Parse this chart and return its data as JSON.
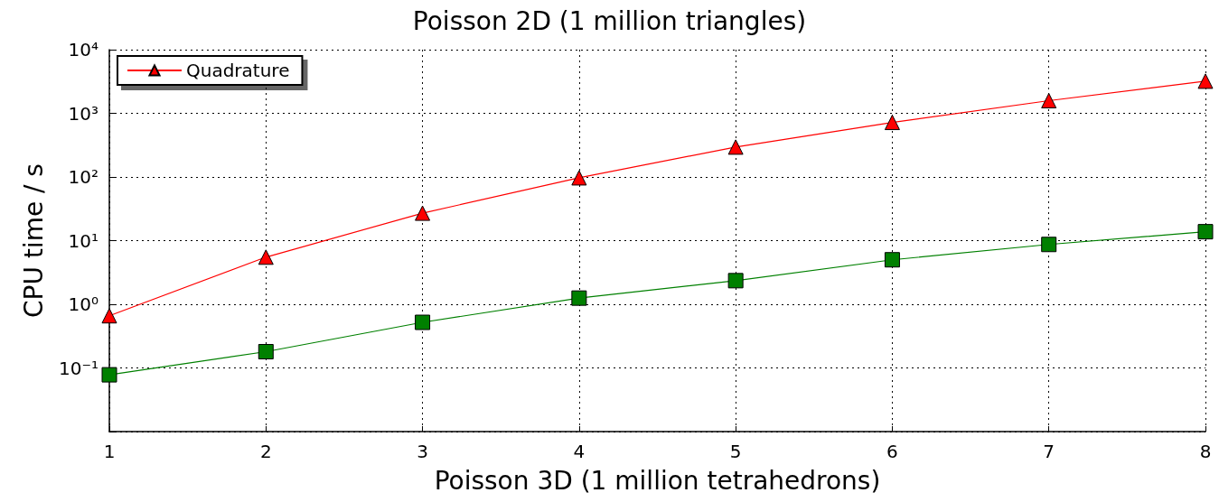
{
  "chart_data": {
    "type": "line",
    "title": "Poisson 2D (1 million triangles)",
    "xlabel": "Poisson 3D (1 million tetrahedrons)",
    "ylabel": "CPU time / s",
    "x": [
      1,
      2,
      3,
      4,
      5,
      6,
      7,
      8
    ],
    "series": [
      {
        "name": "Quadrature",
        "color": "#ff0000",
        "marker": "triangle",
        "values": [
          0.66,
          5.5,
          27,
          97,
          295,
          720,
          1580,
          3200
        ]
      },
      {
        "color": "#008000",
        "marker": "square",
        "values": [
          0.078,
          0.18,
          0.52,
          1.25,
          2.35,
          5,
          8.7,
          13.8
        ]
      }
    ],
    "log": "y",
    "xlim": [
      1,
      8
    ],
    "xticks": [
      1,
      2,
      3,
      4,
      5,
      6,
      7,
      8
    ],
    "ylim": [
      0.01,
      10000
    ],
    "yticks": [
      {
        "value": 0.01,
        "label": null
      },
      {
        "value": 0.1,
        "label": "10⁻¹"
      },
      {
        "value": 1,
        "label": "10⁰"
      },
      {
        "value": 10,
        "label": "10¹"
      },
      {
        "value": 100,
        "label": "10²"
      },
      {
        "value": 1000,
        "label": "10³"
      },
      {
        "value": 10000,
        "label": "10⁴"
      }
    ],
    "grid": true,
    "legend": "top left",
    "line_style": "solid"
  }
}
